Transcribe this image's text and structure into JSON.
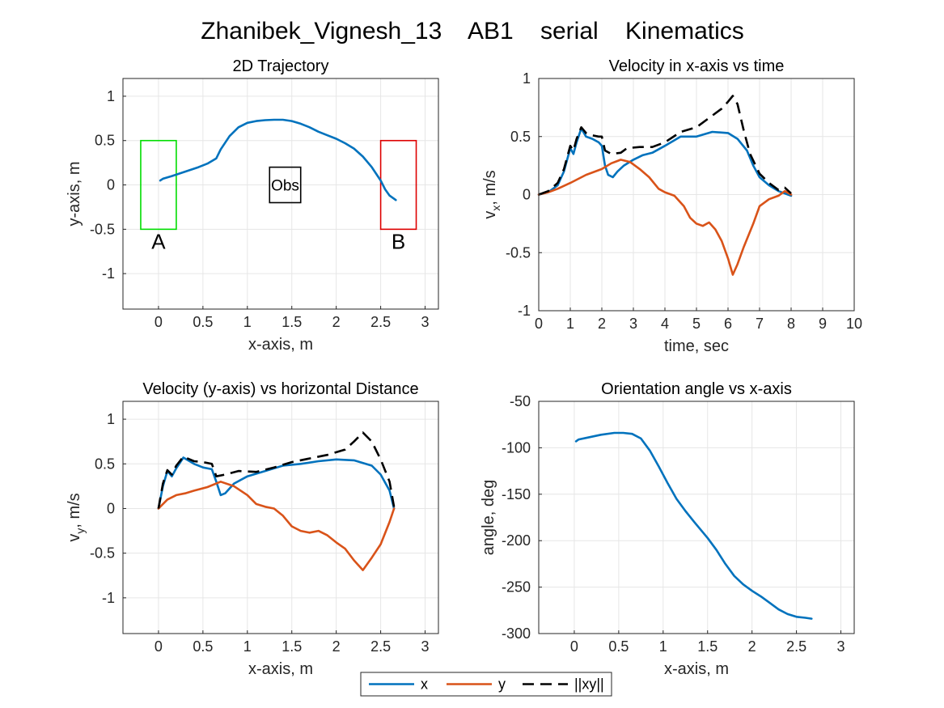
{
  "figure": {
    "title": "Zhanibek_Vignesh_13    AB1    serial    Kinematics"
  },
  "colors": {
    "x": "#0072BD",
    "y": "#D95319",
    "xy": "#000000",
    "start_box": "#00DD00",
    "end_box": "#DD0000",
    "obstacle": "#000000",
    "grid": "#E6E6E6"
  },
  "legend": {
    "entries": [
      {
        "key": "x",
        "label": "x",
        "style": "solid"
      },
      {
        "key": "y",
        "label": "y",
        "style": "solid"
      },
      {
        "key": "xy",
        "label": "||xy||",
        "style": "dashed"
      }
    ]
  },
  "chart_data": [
    {
      "id": "trajectory",
      "type": "line",
      "title": "2D Trajectory",
      "xlabel": "x-axis, m",
      "ylabel": "y-axis, m",
      "xlim": [
        -0.4,
        3.15
      ],
      "ylim": [
        -1.4,
        1.2
      ],
      "xticks": [
        0,
        0.5,
        1,
        1.5,
        2,
        2.5,
        3
      ],
      "yticks": [
        -1,
        -0.5,
        0,
        0.5,
        1
      ],
      "grid": true,
      "series": [
        {
          "key": "x",
          "points": [
            [
              0.02,
              0.05
            ],
            [
              0.05,
              0.07
            ],
            [
              0.15,
              0.1
            ],
            [
              0.3,
              0.15
            ],
            [
              0.45,
              0.2
            ],
            [
              0.55,
              0.24
            ],
            [
              0.65,
              0.3
            ],
            [
              0.7,
              0.4
            ],
            [
              0.8,
              0.55
            ],
            [
              0.9,
              0.65
            ],
            [
              1.0,
              0.7
            ],
            [
              1.1,
              0.72
            ],
            [
              1.2,
              0.73
            ],
            [
              1.3,
              0.735
            ],
            [
              1.4,
              0.735
            ],
            [
              1.5,
              0.72
            ],
            [
              1.6,
              0.69
            ],
            [
              1.7,
              0.65
            ],
            [
              1.8,
              0.6
            ],
            [
              1.9,
              0.56
            ],
            [
              2.0,
              0.52
            ],
            [
              2.1,
              0.47
            ],
            [
              2.2,
              0.41
            ],
            [
              2.3,
              0.32
            ],
            [
              2.4,
              0.2
            ],
            [
              2.5,
              0.05
            ],
            [
              2.55,
              -0.05
            ],
            [
              2.6,
              -0.12
            ],
            [
              2.67,
              -0.17
            ]
          ]
        }
      ],
      "regions": [
        {
          "label": "A",
          "color_key": "start_box",
          "x0": -0.2,
          "x1": 0.2,
          "y0": -0.5,
          "y1": 0.5
        },
        {
          "label": "B",
          "color_key": "end_box",
          "x0": 2.5,
          "x1": 2.9,
          "y0": -0.5,
          "y1": 0.5
        },
        {
          "label": "Obs",
          "color_key": "obstacle",
          "x0": 1.25,
          "x1": 1.6,
          "y0": -0.2,
          "y1": 0.2
        }
      ]
    },
    {
      "id": "vx_time",
      "type": "line",
      "title": "Velocity in x-axis vs time",
      "xlabel": "time, sec",
      "ylabel": "v",
      "ylabel_sub": "x",
      "ylabel_unit": ", m/s",
      "xlim": [
        0,
        10
      ],
      "ylim": [
        -1,
        1
      ],
      "xticks": [
        0,
        1,
        2,
        3,
        4,
        5,
        6,
        7,
        8,
        9,
        10
      ],
      "yticks": [
        -1,
        -0.5,
        0,
        0.5,
        1
      ],
      "grid": true,
      "series": [
        {
          "key": "x",
          "points": [
            [
              0,
              0
            ],
            [
              0.3,
              0.02
            ],
            [
              0.6,
              0.08
            ],
            [
              0.8,
              0.2
            ],
            [
              1.0,
              0.4
            ],
            [
              1.1,
              0.35
            ],
            [
              1.2,
              0.45
            ],
            [
              1.35,
              0.57
            ],
            [
              1.5,
              0.5
            ],
            [
              1.7,
              0.48
            ],
            [
              1.9,
              0.45
            ],
            [
              2.0,
              0.42
            ],
            [
              2.1,
              0.25
            ],
            [
              2.2,
              0.17
            ],
            [
              2.35,
              0.15
            ],
            [
              2.5,
              0.2
            ],
            [
              2.7,
              0.25
            ],
            [
              3.0,
              0.3
            ],
            [
              3.3,
              0.34
            ],
            [
              3.6,
              0.36
            ],
            [
              4.0,
              0.42
            ],
            [
              4.5,
              0.5
            ],
            [
              5.0,
              0.5
            ],
            [
              5.5,
              0.54
            ],
            [
              6.0,
              0.53
            ],
            [
              6.3,
              0.48
            ],
            [
              6.6,
              0.38
            ],
            [
              6.8,
              0.25
            ],
            [
              7.0,
              0.15
            ],
            [
              7.3,
              0.08
            ],
            [
              7.6,
              0.03
            ],
            [
              7.9,
              0.0
            ],
            [
              8.0,
              -0.01
            ]
          ]
        },
        {
          "key": "y",
          "points": [
            [
              0,
              0
            ],
            [
              0.3,
              0.02
            ],
            [
              0.6,
              0.05
            ],
            [
              1.0,
              0.1
            ],
            [
              1.5,
              0.17
            ],
            [
              2.0,
              0.22
            ],
            [
              2.3,
              0.27
            ],
            [
              2.6,
              0.3
            ],
            [
              2.9,
              0.28
            ],
            [
              3.2,
              0.22
            ],
            [
              3.5,
              0.15
            ],
            [
              3.8,
              0.05
            ],
            [
              4.0,
              0.02
            ],
            [
              4.3,
              -0.01
            ],
            [
              4.6,
              -0.1
            ],
            [
              4.8,
              -0.2
            ],
            [
              5.0,
              -0.25
            ],
            [
              5.2,
              -0.27
            ],
            [
              5.4,
              -0.24
            ],
            [
              5.6,
              -0.3
            ],
            [
              5.8,
              -0.4
            ],
            [
              6.0,
              -0.55
            ],
            [
              6.15,
              -0.69
            ],
            [
              6.3,
              -0.6
            ],
            [
              6.5,
              -0.45
            ],
            [
              6.8,
              -0.25
            ],
            [
              7.0,
              -0.1
            ],
            [
              7.3,
              -0.04
            ],
            [
              7.6,
              -0.01
            ],
            [
              7.8,
              0.03
            ],
            [
              8.0,
              0.0
            ]
          ]
        },
        {
          "key": "xy",
          "points": [
            [
              0,
              0
            ],
            [
              0.3,
              0.03
            ],
            [
              0.6,
              0.1
            ],
            [
              0.8,
              0.22
            ],
            [
              1.0,
              0.42
            ],
            [
              1.1,
              0.38
            ],
            [
              1.2,
              0.48
            ],
            [
              1.35,
              0.58
            ],
            [
              1.5,
              0.53
            ],
            [
              1.7,
              0.51
            ],
            [
              1.9,
              0.5
            ],
            [
              2.0,
              0.5
            ],
            [
              2.1,
              0.38
            ],
            [
              2.3,
              0.35
            ],
            [
              2.6,
              0.36
            ],
            [
              2.8,
              0.4
            ],
            [
              3.2,
              0.41
            ],
            [
              3.6,
              0.41
            ],
            [
              4.0,
              0.45
            ],
            [
              4.5,
              0.54
            ],
            [
              5.0,
              0.58
            ],
            [
              5.5,
              0.68
            ],
            [
              5.8,
              0.74
            ],
            [
              6.0,
              0.8
            ],
            [
              6.15,
              0.85
            ],
            [
              6.3,
              0.78
            ],
            [
              6.5,
              0.55
            ],
            [
              6.7,
              0.35
            ],
            [
              7.0,
              0.18
            ],
            [
              7.3,
              0.1
            ],
            [
              7.6,
              0.04
            ],
            [
              7.8,
              0.06
            ],
            [
              8.0,
              0.01
            ]
          ]
        }
      ]
    },
    {
      "id": "vy_distance",
      "type": "line",
      "title": "Velocity (y-axis) vs horizontal Distance",
      "xlabel": "x-axis, m",
      "ylabel": "v",
      "ylabel_sub": "y",
      "ylabel_unit": ", m/s",
      "xlim": [
        -0.4,
        3.15
      ],
      "ylim": [
        -1.4,
        1.2
      ],
      "xticks": [
        0,
        0.5,
        1,
        1.5,
        2,
        2.5,
        3
      ],
      "yticks": [
        -1,
        -0.5,
        0,
        0.5,
        1
      ],
      "grid": true,
      "series": [
        {
          "key": "x",
          "points": [
            [
              0.0,
              0.0
            ],
            [
              0.05,
              0.25
            ],
            [
              0.1,
              0.42
            ],
            [
              0.15,
              0.36
            ],
            [
              0.2,
              0.45
            ],
            [
              0.28,
              0.57
            ],
            [
              0.4,
              0.5
            ],
            [
              0.5,
              0.46
            ],
            [
              0.6,
              0.44
            ],
            [
              0.65,
              0.3
            ],
            [
              0.7,
              0.15
            ],
            [
              0.75,
              0.17
            ],
            [
              0.85,
              0.28
            ],
            [
              1.0,
              0.36
            ],
            [
              1.2,
              0.42
            ],
            [
              1.4,
              0.48
            ],
            [
              1.6,
              0.5
            ],
            [
              1.8,
              0.53
            ],
            [
              2.0,
              0.55
            ],
            [
              2.2,
              0.54
            ],
            [
              2.4,
              0.48
            ],
            [
              2.5,
              0.38
            ],
            [
              2.6,
              0.2
            ],
            [
              2.65,
              0.0
            ]
          ]
        },
        {
          "key": "y",
          "points": [
            [
              0.0,
              0.0
            ],
            [
              0.1,
              0.1
            ],
            [
              0.2,
              0.15
            ],
            [
              0.3,
              0.17
            ],
            [
              0.4,
              0.2
            ],
            [
              0.55,
              0.24
            ],
            [
              0.7,
              0.3
            ],
            [
              0.85,
              0.25
            ],
            [
              1.0,
              0.15
            ],
            [
              1.1,
              0.05
            ],
            [
              1.2,
              0.02
            ],
            [
              1.3,
              0.0
            ],
            [
              1.4,
              -0.08
            ],
            [
              1.5,
              -0.2
            ],
            [
              1.6,
              -0.25
            ],
            [
              1.7,
              -0.27
            ],
            [
              1.8,
              -0.25
            ],
            [
              1.9,
              -0.3
            ],
            [
              2.0,
              -0.38
            ],
            [
              2.1,
              -0.45
            ],
            [
              2.2,
              -0.58
            ],
            [
              2.3,
              -0.69
            ],
            [
              2.4,
              -0.55
            ],
            [
              2.5,
              -0.4
            ],
            [
              2.6,
              -0.15
            ],
            [
              2.65,
              0.0
            ]
          ]
        },
        {
          "key": "xy",
          "points": [
            [
              0.0,
              0.0
            ],
            [
              0.05,
              0.28
            ],
            [
              0.1,
              0.43
            ],
            [
              0.15,
              0.38
            ],
            [
              0.2,
              0.48
            ],
            [
              0.28,
              0.58
            ],
            [
              0.4,
              0.53
            ],
            [
              0.5,
              0.52
            ],
            [
              0.6,
              0.5
            ],
            [
              0.65,
              0.36
            ],
            [
              0.75,
              0.38
            ],
            [
              0.9,
              0.42
            ],
            [
              1.1,
              0.41
            ],
            [
              1.3,
              0.46
            ],
            [
              1.5,
              0.52
            ],
            [
              1.7,
              0.56
            ],
            [
              1.9,
              0.6
            ],
            [
              2.1,
              0.66
            ],
            [
              2.2,
              0.75
            ],
            [
              2.3,
              0.85
            ],
            [
              2.4,
              0.75
            ],
            [
              2.5,
              0.55
            ],
            [
              2.6,
              0.3
            ],
            [
              2.65,
              0.02
            ]
          ]
        }
      ]
    },
    {
      "id": "orientation",
      "type": "line",
      "title": "Orientation angle vs x-axis",
      "xlabel": "x-axis, m",
      "ylabel": "angle, deg",
      "xlim": [
        -0.4,
        3.15
      ],
      "ylim": [
        -300,
        -50
      ],
      "xticks": [
        0,
        0.5,
        1,
        1.5,
        2,
        2.5,
        3
      ],
      "yticks": [
        -300,
        -250,
        -200,
        -150,
        -100,
        -50
      ],
      "grid": true,
      "series": [
        {
          "key": "x",
          "points": [
            [
              0.02,
              -93
            ],
            [
              0.05,
              -91
            ],
            [
              0.15,
              -89
            ],
            [
              0.3,
              -86
            ],
            [
              0.45,
              -84
            ],
            [
              0.55,
              -84
            ],
            [
              0.65,
              -85
            ],
            [
              0.75,
              -90
            ],
            [
              0.85,
              -103
            ],
            [
              0.95,
              -120
            ],
            [
              1.05,
              -138
            ],
            [
              1.15,
              -155
            ],
            [
              1.25,
              -168
            ],
            [
              1.35,
              -180
            ],
            [
              1.5,
              -197
            ],
            [
              1.6,
              -210
            ],
            [
              1.7,
              -225
            ],
            [
              1.8,
              -238
            ],
            [
              1.9,
              -247
            ],
            [
              2.0,
              -254
            ],
            [
              2.1,
              -260
            ],
            [
              2.2,
              -267
            ],
            [
              2.3,
              -274
            ],
            [
              2.4,
              -279
            ],
            [
              2.5,
              -282
            ],
            [
              2.6,
              -283
            ],
            [
              2.67,
              -284
            ]
          ]
        }
      ]
    }
  ]
}
